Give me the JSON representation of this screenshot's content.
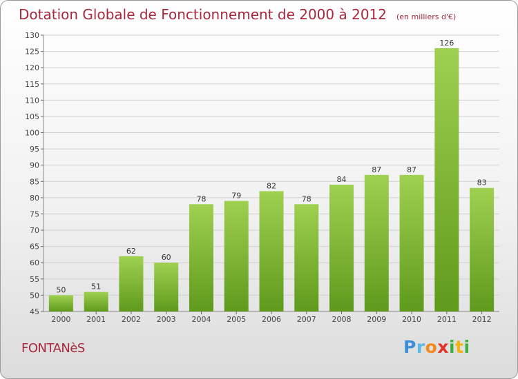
{
  "header": {
    "title": "Dotation Globale de Fonctionnement de 2000 à 2012",
    "subtitle": "(en milliers d'€)"
  },
  "footer": {
    "commune": "FONTANèS",
    "brand_letters": [
      "P",
      "r",
      "o",
      "x",
      "i",
      "t",
      "i"
    ]
  },
  "colors": {
    "title": "#a8283c",
    "bar_top": "#9fd050",
    "bar_bottom": "#5f9a1c",
    "grid": "#d0d0d0"
  },
  "chart_data": {
    "type": "bar",
    "title": "Dotation Globale de Fonctionnement de 2000 à 2012",
    "subtitle": "(en milliers d'€)",
    "categories": [
      "2000",
      "2001",
      "2002",
      "2003",
      "2004",
      "2005",
      "2006",
      "2007",
      "2008",
      "2009",
      "2010",
      "2011",
      "2012"
    ],
    "values": [
      50,
      51,
      62,
      60,
      78,
      79,
      82,
      78,
      84,
      87,
      87,
      126,
      83
    ],
    "ylim": [
      45,
      130
    ],
    "yticks": [
      45,
      50,
      55,
      60,
      65,
      70,
      75,
      80,
      85,
      90,
      95,
      100,
      105,
      110,
      115,
      120,
      125,
      130
    ],
    "grid": true,
    "data_labels": true,
    "legend": "none"
  }
}
